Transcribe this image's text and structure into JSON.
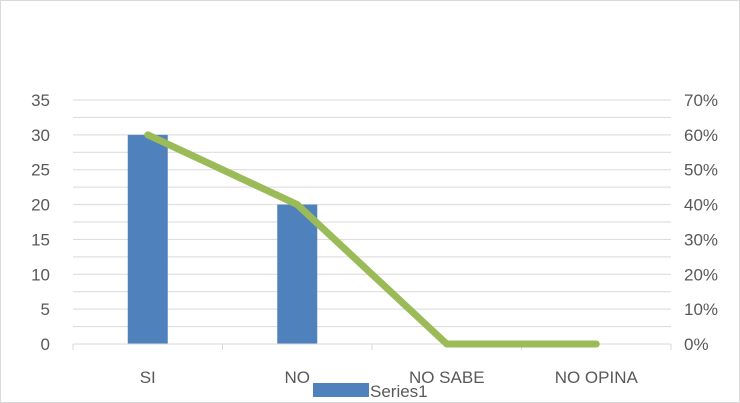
{
  "chart_data": {
    "type": "bar",
    "categories": [
      "SI",
      "NO",
      "NO SABE",
      "NO OPINA"
    ],
    "series": [
      {
        "name": "Series1",
        "kind": "bar",
        "axis": "left",
        "values": [
          30,
          20,
          0,
          0
        ]
      },
      {
        "kind": "line",
        "axis": "right",
        "values": [
          0.6,
          0.4,
          0.0,
          0.0
        ]
      }
    ],
    "y_left": {
      "ylim": [
        0,
        35
      ],
      "ticks": [
        "0",
        "5",
        "10",
        "15",
        "20",
        "25",
        "30",
        "35"
      ]
    },
    "y_right": {
      "ylim": [
        0,
        0.7
      ],
      "ticks": [
        "0%",
        "10%",
        "20%",
        "30%",
        "40%",
        "50%",
        "60%",
        "70%"
      ]
    },
    "grid": true,
    "legend": "bottom",
    "colors": {
      "bar": "#4f81bd",
      "line": "#9bbb59",
      "grid": "#d9d9d9",
      "text": "#595959"
    }
  }
}
